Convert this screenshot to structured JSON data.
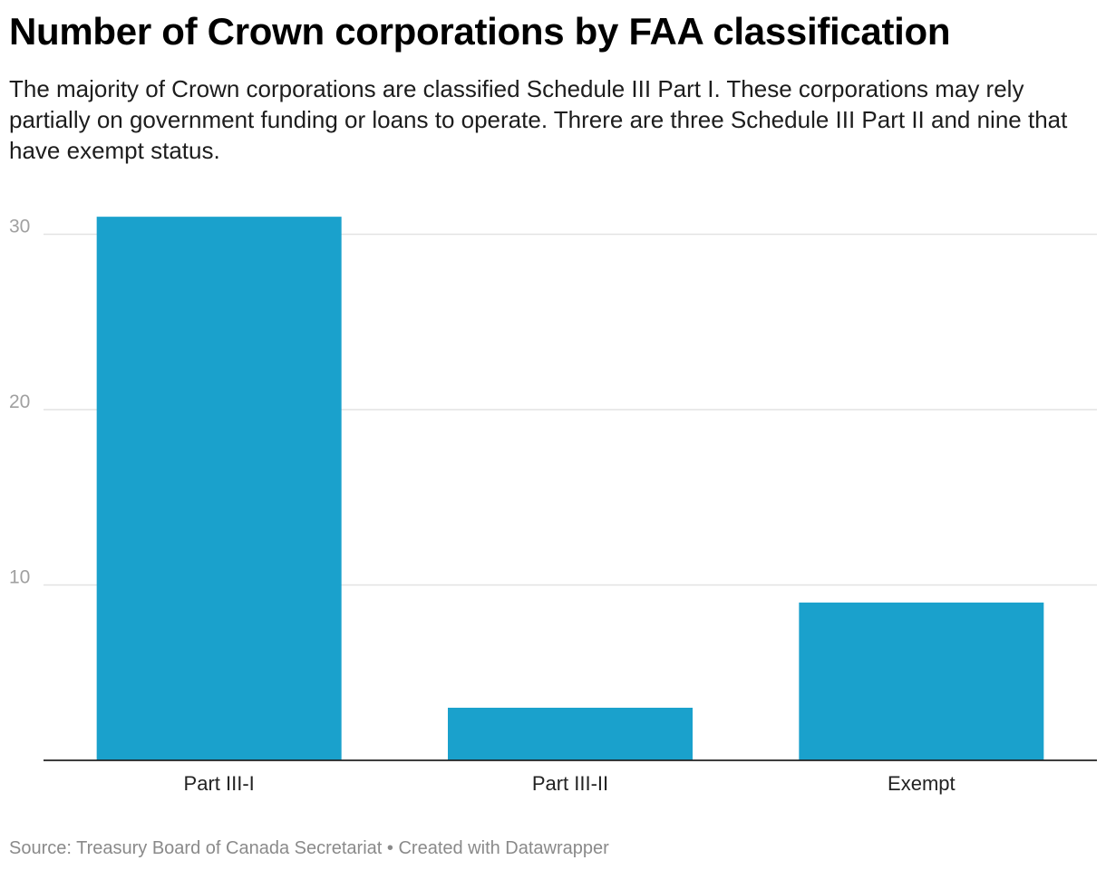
{
  "chart_data": {
    "type": "bar",
    "title": "Number of Crown corporations by FAA classification",
    "subtitle": "The majority of Crown corporations are classified Schedule III Part I. These corporations may rely partially on government funding or loans to operate. Threre are three Schedule III Part II and nine that have exempt status.",
    "categories": [
      "Part III-I",
      "Part III-II",
      "Exempt"
    ],
    "values": [
      31,
      3,
      9
    ],
    "xlabel": "",
    "ylabel": "",
    "ylim": [
      0,
      31
    ],
    "yticks": [
      10,
      20,
      30
    ],
    "grid": true,
    "bar_color": "#1aa1cc"
  },
  "footer": {
    "source": "Source: Treasury Board of Canada Secretariat",
    "separator": "•",
    "credit": "Created with Datawrapper"
  }
}
